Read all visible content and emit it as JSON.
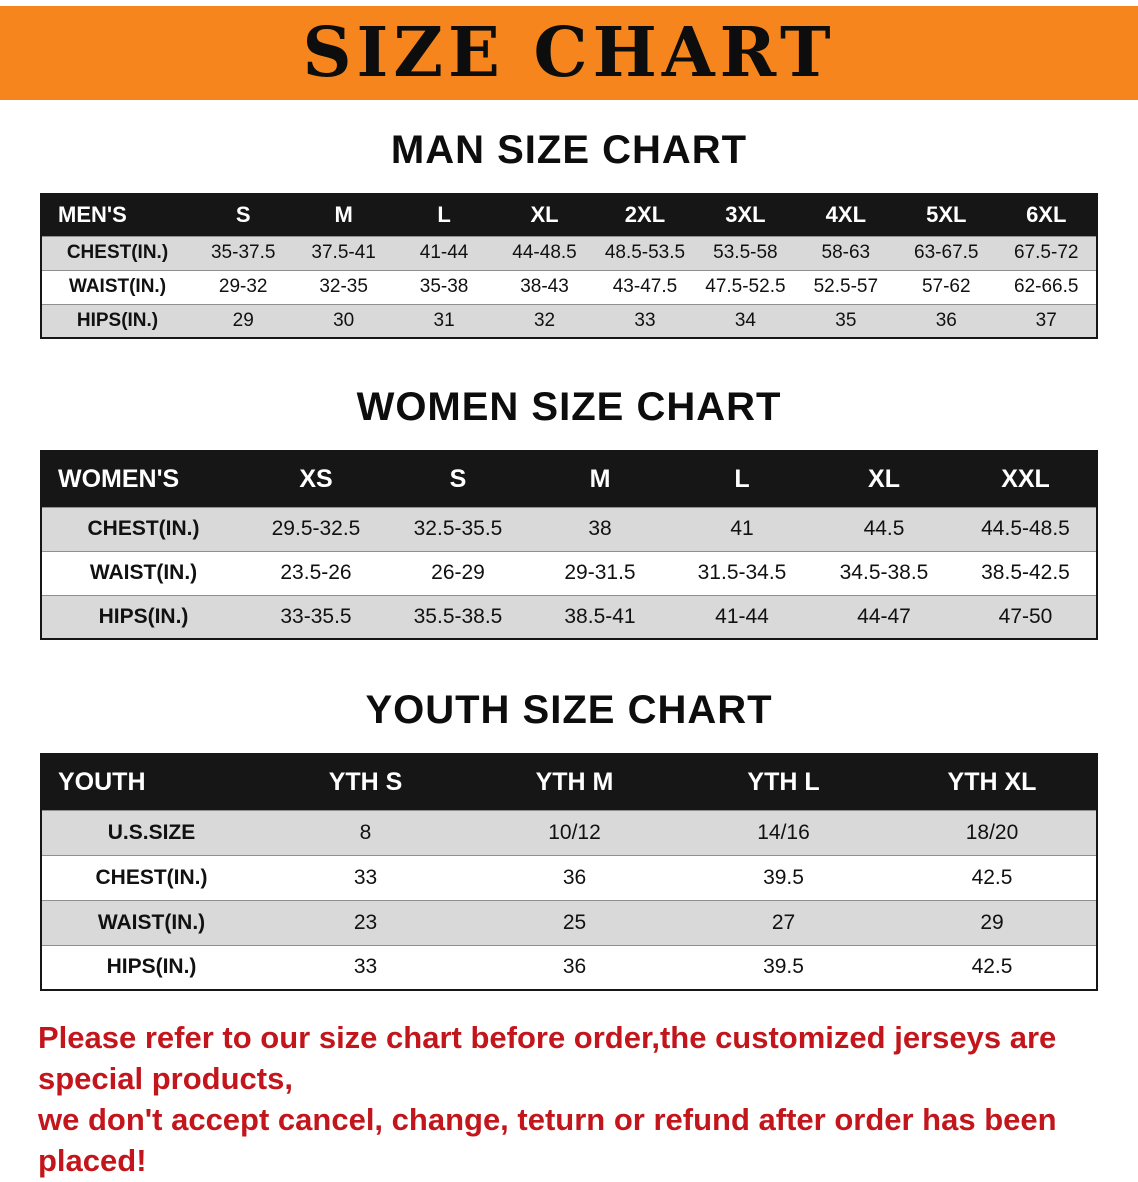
{
  "colors": {
    "banner-bg": "#f5851c",
    "table-header-bg": "#161616",
    "row-stripe": "#d9d9d9",
    "disclaimer-color": "#c3161c"
  },
  "banner": {
    "title": "SIZE CHART"
  },
  "tables": {
    "men": {
      "heading": "MAN SIZE CHART",
      "header": [
        "MEN'S",
        "S",
        "M",
        "L",
        "XL",
        "2XL",
        "3XL",
        "4XL",
        "5XL",
        "6XL"
      ],
      "rows": [
        [
          "CHEST(IN.)",
          "35-37.5",
          "37.5-41",
          "41-44",
          "44-48.5",
          "48.5-53.5",
          "53.5-58",
          "58-63",
          "63-67.5",
          "67.5-72"
        ],
        [
          "WAIST(IN.)",
          "29-32",
          "32-35",
          "35-38",
          "38-43",
          "43-47.5",
          "47.5-52.5",
          "52.5-57",
          "57-62",
          "62-66.5"
        ],
        [
          "HIPS(IN.)",
          "29",
          "30",
          "31",
          "32",
          "33",
          "34",
          "35",
          "36",
          "37"
        ]
      ]
    },
    "women": {
      "heading": "WOMEN SIZE CHART",
      "header": [
        "WOMEN'S",
        "XS",
        "S",
        "M",
        "L",
        "XL",
        "XXL"
      ],
      "rows": [
        [
          "CHEST(IN.)",
          "29.5-32.5",
          "32.5-35.5",
          "38",
          "41",
          "44.5",
          "44.5-48.5"
        ],
        [
          "WAIST(IN.)",
          "23.5-26",
          "26-29",
          "29-31.5",
          "31.5-34.5",
          "34.5-38.5",
          "38.5-42.5"
        ],
        [
          "HIPS(IN.)",
          "33-35.5",
          "35.5-38.5",
          "38.5-41",
          "41-44",
          "44-47",
          "47-50"
        ]
      ]
    },
    "youth": {
      "heading": "YOUTH SIZE CHART",
      "header": [
        "YOUTH",
        "YTH S",
        "YTH M",
        "YTH L",
        "YTH XL"
      ],
      "rows": [
        [
          "U.S.SIZE",
          "8",
          "10/12",
          "14/16",
          "18/20"
        ],
        [
          "CHEST(IN.)",
          "33",
          "36",
          "39.5",
          "42.5"
        ],
        [
          "WAIST(IN.)",
          "23",
          "25",
          "27",
          "29"
        ],
        [
          "HIPS(IN.)",
          "33",
          "36",
          "39.5",
          "42.5"
        ]
      ]
    }
  },
  "disclaimer": {
    "line1": "Please refer to our size chart before order,the customized jerseys are special products,",
    "line2": "we don't accept cancel, change, teturn or refund after order has been placed!"
  }
}
